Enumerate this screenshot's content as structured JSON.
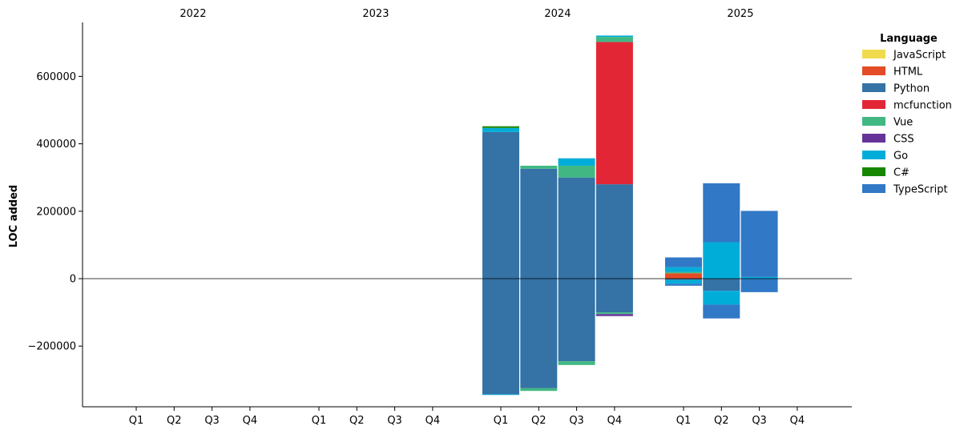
{
  "chart_data": {
    "type": "bar",
    "stacked": true,
    "diverging": true,
    "ylabel": "LOC added",
    "legend_title": "Language",
    "legend_position": "top-right",
    "ylim": [
      -380000,
      760000
    ],
    "y_ticks": [
      -200000,
      0,
      200000,
      400000,
      600000
    ],
    "y_tick_labels": [
      "−200000",
      "0",
      "200000",
      "400000",
      "600000"
    ],
    "years": [
      "2022",
      "2023",
      "2024",
      "2025"
    ],
    "quarters": [
      "Q1",
      "Q2",
      "Q3",
      "Q4"
    ],
    "series": [
      {
        "name": "JavaScript",
        "color": "#f0db4f"
      },
      {
        "name": "HTML",
        "color": "#e34c26"
      },
      {
        "name": "Python",
        "color": "#3572a5"
      },
      {
        "name": "mcfunction",
        "color": "#e32636"
      },
      {
        "name": "Vue",
        "color": "#41b883"
      },
      {
        "name": "CSS",
        "color": "#663399"
      },
      {
        "name": "Go",
        "color": "#00add8"
      },
      {
        "name": "C#",
        "color": "#178600"
      },
      {
        "name": "TypeScript",
        "color": "#3178c6"
      }
    ],
    "bars": [
      {
        "year": "2024",
        "quarter": "Q1",
        "segments": [
          {
            "series": "Python",
            "from": 0,
            "to": 435000
          },
          {
            "series": "Go",
            "from": 435000,
            "to": 447000
          },
          {
            "series": "C#",
            "from": 447000,
            "to": 452000
          },
          {
            "series": "Python",
            "from": 0,
            "to": -343000
          },
          {
            "series": "Go",
            "from": -343000,
            "to": -345000
          }
        ]
      },
      {
        "year": "2024",
        "quarter": "Q2",
        "segments": [
          {
            "series": "Python",
            "from": 0,
            "to": 326000
          },
          {
            "series": "Vue",
            "from": 326000,
            "to": 335000
          },
          {
            "series": "Python",
            "from": 0,
            "to": -325000
          },
          {
            "series": "Vue",
            "from": -325000,
            "to": -333000
          }
        ]
      },
      {
        "year": "2024",
        "quarter": "Q3",
        "segments": [
          {
            "series": "Python",
            "from": 0,
            "to": 300000
          },
          {
            "series": "Vue",
            "from": 300000,
            "to": 335000
          },
          {
            "series": "Go",
            "from": 335000,
            "to": 357000
          },
          {
            "series": "Python",
            "from": 0,
            "to": -245000
          },
          {
            "series": "Vue",
            "from": -245000,
            "to": -256000
          }
        ]
      },
      {
        "year": "2024",
        "quarter": "Q4",
        "segments": [
          {
            "series": "Python",
            "from": 0,
            "to": 280000
          },
          {
            "series": "mcfunction",
            "from": 280000,
            "to": 702000
          },
          {
            "series": "Vue",
            "from": 702000,
            "to": 717000
          },
          {
            "series": "Go",
            "from": 717000,
            "to": 721000
          },
          {
            "series": "Python",
            "from": 0,
            "to": -100000
          },
          {
            "series": "Vue",
            "from": -100000,
            "to": -105000
          },
          {
            "series": "CSS",
            "from": -105000,
            "to": -111000
          }
        ]
      },
      {
        "year": "2025",
        "quarter": "Q1",
        "segments": [
          {
            "series": "HTML",
            "from": 0,
            "to": 16000
          },
          {
            "series": "Vue",
            "from": 16000,
            "to": 20000
          },
          {
            "series": "Go",
            "from": 20000,
            "to": 34000
          },
          {
            "series": "TypeScript",
            "from": 34000,
            "to": 63000
          },
          {
            "series": "Python",
            "from": 0,
            "to": -4000
          },
          {
            "series": "Go",
            "from": -4000,
            "to": -15000
          },
          {
            "series": "TypeScript",
            "from": -15000,
            "to": -21000
          }
        ]
      },
      {
        "year": "2025",
        "quarter": "Q2",
        "segments": [
          {
            "series": "Go",
            "from": 0,
            "to": 108000
          },
          {
            "series": "TypeScript",
            "from": 108000,
            "to": 283000
          },
          {
            "series": "Python",
            "from": 0,
            "to": -36000
          },
          {
            "series": "Go",
            "from": -36000,
            "to": -77000
          },
          {
            "series": "TypeScript",
            "from": -77000,
            "to": -118000
          }
        ]
      },
      {
        "year": "2025",
        "quarter": "Q3",
        "segments": [
          {
            "series": "Go",
            "from": 0,
            "to": 5000
          },
          {
            "series": "TypeScript",
            "from": 5000,
            "to": 201000
          },
          {
            "series": "TypeScript",
            "from": 0,
            "to": -40000
          }
        ]
      }
    ]
  }
}
